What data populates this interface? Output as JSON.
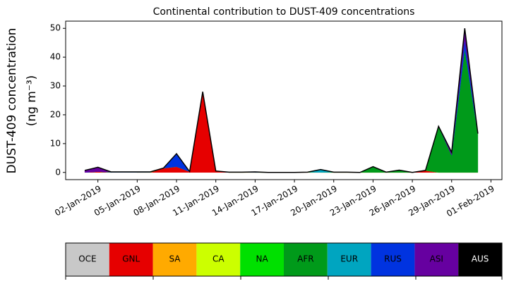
{
  "chart_data": {
    "type": "stacked_area",
    "title": "Continental contribution to DUST-409 concentrations",
    "ylabel": [
      "DUST-409 concentration",
      "(ng m⁻³)"
    ],
    "x": [
      "2019-01-01",
      "2019-01-02",
      "2019-01-03",
      "2019-01-04",
      "2019-01-05",
      "2019-01-06",
      "2019-01-07",
      "2019-01-08",
      "2019-01-09",
      "2019-01-10",
      "2019-01-11",
      "2019-01-12",
      "2019-01-13",
      "2019-01-14",
      "2019-01-15",
      "2019-01-16",
      "2019-01-17",
      "2019-01-18",
      "2019-01-19",
      "2019-01-20",
      "2019-01-21",
      "2019-01-22",
      "2019-01-23",
      "2019-01-24",
      "2019-01-25",
      "2019-01-26",
      "2019-01-27",
      "2019-01-28",
      "2019-01-29",
      "2019-01-30",
      "2019-01-31"
    ],
    "xlim": [
      "2018-12-30",
      "2019-02-02"
    ],
    "xticks": [
      {
        "value": "2019-01-02",
        "label": "02-Jan-2019"
      },
      {
        "value": "2019-01-05",
        "label": "05-Jan-2019"
      },
      {
        "value": "2019-01-08",
        "label": "08-Jan-2019"
      },
      {
        "value": "2019-01-11",
        "label": "11-Jan-2019"
      },
      {
        "value": "2019-01-14",
        "label": "14-Jan-2019"
      },
      {
        "value": "2019-01-17",
        "label": "17-Jan-2019"
      },
      {
        "value": "2019-01-20",
        "label": "20-Jan-2019"
      },
      {
        "value": "2019-01-23",
        "label": "23-Jan-2019"
      },
      {
        "value": "2019-01-26",
        "label": "26-Jan-2019"
      },
      {
        "value": "2019-01-29",
        "label": "29-Jan-2019"
      },
      {
        "value": "2019-02-01",
        "label": "01-Feb-2019"
      }
    ],
    "ylim": [
      -2.5,
      52.5
    ],
    "yticks": [
      0,
      10,
      20,
      30,
      40,
      50
    ],
    "series": [
      {
        "name": "OCE",
        "color": "#c8c8c8",
        "values": [
          0,
          0,
          0,
          0,
          0,
          0,
          0,
          0,
          0,
          0,
          0,
          0,
          0,
          0,
          0,
          0,
          0,
          0,
          0,
          0,
          0,
          0,
          0,
          0,
          0,
          0,
          0,
          0,
          0,
          0,
          0
        ]
      },
      {
        "name": "GNL",
        "color": "#e60000",
        "values": [
          0,
          0.3,
          0,
          0.1,
          0,
          0,
          1.5,
          2,
          0.3,
          28,
          0.5,
          0,
          0,
          0,
          0,
          0,
          0,
          0,
          0,
          0,
          0,
          0,
          0,
          0,
          0,
          0,
          0.7,
          0,
          0,
          0,
          0
        ]
      },
      {
        "name": "SA",
        "color": "#ffaa00",
        "values": [
          0,
          0,
          0,
          0,
          0,
          0,
          0,
          0,
          0,
          0,
          0,
          0,
          0,
          0,
          0,
          0,
          0,
          0,
          0,
          0,
          0,
          0,
          0,
          0,
          0,
          0,
          0,
          0,
          0,
          0,
          0
        ]
      },
      {
        "name": "CA",
        "color": "#ccff00",
        "values": [
          0,
          0,
          0,
          0,
          0,
          0,
          0,
          0,
          0,
          0,
          0,
          0,
          0,
          0,
          0,
          0,
          0,
          0.1,
          0,
          0,
          0,
          0,
          0,
          0,
          0,
          0,
          0,
          0,
          0,
          0,
          0
        ]
      },
      {
        "name": "NA",
        "color": "#00e000",
        "values": [
          0,
          0,
          0,
          0,
          0,
          0.1,
          0,
          0,
          0,
          0,
          0,
          0,
          0,
          0,
          0,
          0,
          0,
          0,
          0,
          0,
          0,
          0,
          0,
          0,
          0,
          0,
          0,
          0,
          0,
          0,
          0
        ]
      },
      {
        "name": "AFR",
        "color": "#009a1a",
        "values": [
          0,
          0,
          0.1,
          0,
          0.1,
          0,
          0,
          0,
          0,
          0,
          0,
          0,
          0.1,
          0,
          0,
          0,
          0,
          0,
          0,
          0.1,
          0.1,
          0,
          2,
          0.1,
          0.8,
          0,
          0,
          16,
          6,
          43,
          13.5
        ]
      },
      {
        "name": "EUR",
        "color": "#00a5c0",
        "values": [
          0,
          0,
          0,
          0,
          0,
          0,
          0,
          0,
          0,
          0,
          0,
          0,
          0,
          0,
          0,
          0,
          0,
          0,
          1,
          0,
          0,
          0,
          0,
          0,
          0,
          0,
          0,
          0,
          0,
          0,
          0
        ]
      },
      {
        "name": "RUS",
        "color": "#0033e0",
        "values": [
          0,
          0,
          0,
          0,
          0,
          0,
          0,
          4.5,
          0,
          0,
          0,
          0,
          0,
          0.2,
          0,
          0,
          0,
          0,
          0,
          0,
          0,
          0,
          0,
          0,
          0,
          0,
          0,
          0,
          0,
          3,
          0
        ]
      },
      {
        "name": "ASI",
        "color": "#6600a0",
        "values": [
          0.7,
          1.5,
          0.1,
          0.1,
          0.1,
          0.1,
          0,
          0,
          0,
          0,
          0,
          0.1,
          0,
          0,
          0,
          0,
          0,
          0,
          0,
          0,
          0,
          0,
          0,
          0,
          0,
          0,
          0,
          0,
          1,
          4,
          0
        ]
      },
      {
        "name": "AUS",
        "color": "#000000",
        "values": [
          0,
          0,
          0,
          0,
          0,
          0,
          0,
          0,
          0,
          0,
          0,
          0,
          0,
          0,
          0,
          0,
          0,
          0,
          0,
          0,
          0,
          0,
          0,
          0,
          0,
          0,
          0,
          0,
          0,
          0,
          0
        ]
      }
    ]
  }
}
